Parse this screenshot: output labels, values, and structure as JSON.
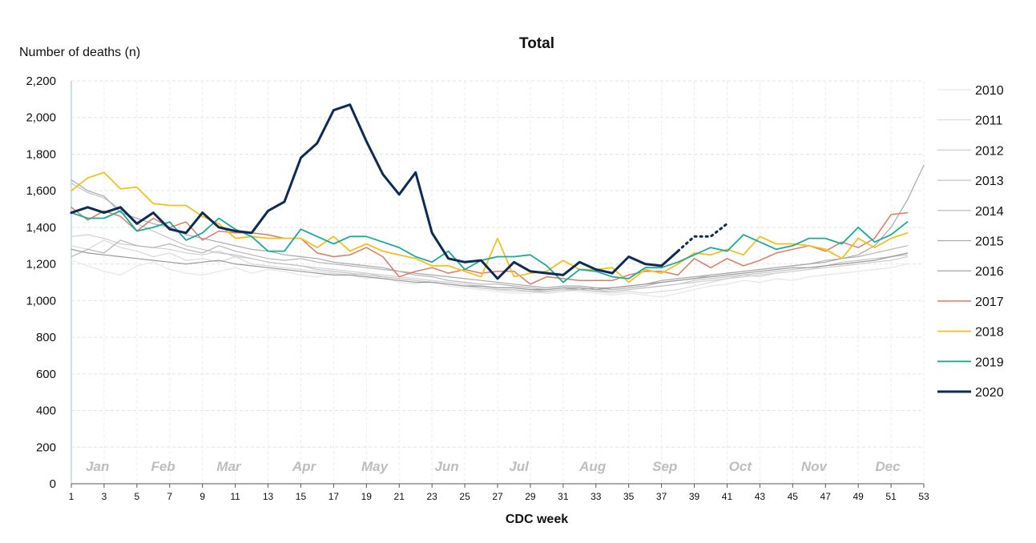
{
  "chart_data": {
    "type": "line",
    "title": "Total",
    "ylabel": "Number of deaths (n)",
    "xlabel": "CDC week",
    "ylim": [
      0,
      2200
    ],
    "yticks": [
      0,
      200,
      400,
      600,
      800,
      1000,
      1200,
      1400,
      1600,
      1800,
      2000,
      2200
    ],
    "ytick_labels": [
      "0",
      "200",
      "400",
      "600",
      "800",
      "1,000",
      "1,200",
      "1,400",
      "1,600",
      "1,800",
      "2,000",
      "2,200"
    ],
    "xlim": [
      1,
      53
    ],
    "xticks": [
      1,
      3,
      5,
      7,
      9,
      11,
      13,
      15,
      17,
      19,
      21,
      23,
      25,
      27,
      29,
      31,
      33,
      35,
      37,
      39,
      41,
      43,
      45,
      47,
      49,
      51,
      53
    ],
    "months": [
      {
        "label": "Jan",
        "week": 2.6
      },
      {
        "label": "Feb",
        "week": 6.6
      },
      {
        "label": "Mar",
        "week": 10.6
      },
      {
        "label": "Apr",
        "week": 15.2
      },
      {
        "label": "May",
        "week": 19.5
      },
      {
        "label": "Jun",
        "week": 23.9
      },
      {
        "label": "Jul",
        "week": 28.3
      },
      {
        "label": "Aug",
        "week": 32.8
      },
      {
        "label": "Sep",
        "week": 37.2
      },
      {
        "label": "Oct",
        "week": 41.8
      },
      {
        "label": "Nov",
        "week": 46.3
      },
      {
        "label": "Dec",
        "week": 50.8
      }
    ],
    "grid": true,
    "legend_position": "right",
    "series": [
      {
        "name": "2010",
        "color": "#e6e6e6",
        "width": 1.2,
        "x_start": 1,
        "values": [
          1220,
          1190,
          1160,
          1140,
          1190,
          1210,
          1170,
          1150,
          1140,
          1160,
          1180,
          1150,
          1170,
          1160,
          1140,
          1130,
          1150,
          1140,
          1120,
          1130,
          1100,
          1090,
          1110,
          1080,
          1070,
          1060,
          1050,
          1040,
          1040,
          1050,
          1060,
          1050,
          1040,
          1030,
          1040,
          1030,
          1020,
          1040,
          1060,
          1080,
          1090,
          1110,
          1100,
          1120,
          1110,
          1130,
          1140,
          1150,
          1160,
          1170,
          1180,
          1200
        ]
      },
      {
        "name": "2011",
        "color": "#d9d9d9",
        "width": 1.2,
        "x_start": 1,
        "values": [
          1300,
          1280,
          1330,
          1290,
          1270,
          1240,
          1260,
          1220,
          1230,
          1210,
          1240,
          1200,
          1190,
          1180,
          1170,
          1160,
          1150,
          1140,
          1150,
          1130,
          1120,
          1110,
          1100,
          1090,
          1080,
          1070,
          1060,
          1050,
          1050,
          1040,
          1050,
          1060,
          1050,
          1040,
          1050,
          1040,
          1050,
          1060,
          1080,
          1100,
          1120,
          1140,
          1130,
          1150,
          1160,
          1170,
          1190,
          1200,
          1210,
          1220,
          1240,
          1260
        ]
      },
      {
        "name": "2012",
        "color": "#cfcfcf",
        "width": 1.2,
        "x_start": 1,
        "values": [
          1350,
          1360,
          1340,
          1310,
          1300,
          1290,
          1280,
          1260,
          1250,
          1270,
          1240,
          1230,
          1210,
          1200,
          1190,
          1180,
          1170,
          1160,
          1150,
          1140,
          1130,
          1120,
          1110,
          1100,
          1090,
          1080,
          1070,
          1070,
          1060,
          1050,
          1060,
          1070,
          1060,
          1050,
          1060,
          1070,
          1080,
          1090,
          1100,
          1110,
          1120,
          1130,
          1140,
          1150,
          1160,
          1170,
          1180,
          1190,
          1200,
          1210,
          1220,
          1240
        ]
      },
      {
        "name": "2013",
        "color": "#c4c4c4",
        "width": 1.2,
        "x_start": 1,
        "values": [
          1640,
          1590,
          1560,
          1500,
          1420,
          1380,
          1340,
          1300,
          1280,
          1260,
          1250,
          1230,
          1210,
          1200,
          1190,
          1170,
          1160,
          1150,
          1140,
          1130,
          1120,
          1110,
          1100,
          1090,
          1080,
          1070,
          1060,
          1060,
          1050,
          1050,
          1060,
          1060,
          1050,
          1050,
          1060,
          1070,
          1080,
          1090,
          1110,
          1120,
          1130,
          1140,
          1150,
          1160,
          1170,
          1180,
          1190,
          1210,
          1220,
          1230,
          1240,
          1250
        ]
      },
      {
        "name": "2014",
        "color": "#b5b5b5",
        "width": 1.2,
        "x_start": 1,
        "values": [
          1240,
          1280,
          1260,
          1330,
          1300,
          1290,
          1310,
          1280,
          1260,
          1300,
          1270,
          1250,
          1230,
          1220,
          1230,
          1210,
          1200,
          1190,
          1180,
          1170,
          1160,
          1140,
          1130,
          1110,
          1100,
          1090,
          1090,
          1080,
          1070,
          1060,
          1070,
          1060,
          1070,
          1060,
          1070,
          1080,
          1100,
          1110,
          1120,
          1140,
          1150,
          1160,
          1170,
          1180,
          1190,
          1200,
          1220,
          1230,
          1240,
          1260,
          1280,
          1300
        ]
      },
      {
        "name": "2015",
        "color": "#a8a8a8",
        "width": 1.2,
        "x_start": 1,
        "values": [
          1660,
          1600,
          1570,
          1480,
          1450,
          1420,
          1400,
          1360,
          1340,
          1320,
          1300,
          1280,
          1270,
          1250,
          1240,
          1230,
          1210,
          1200,
          1190,
          1180,
          1160,
          1150,
          1140,
          1130,
          1120,
          1110,
          1100,
          1090,
          1080,
          1070,
          1080,
          1080,
          1070,
          1070,
          1080,
          1090,
          1110,
          1120,
          1130,
          1140,
          1150,
          1160,
          1170,
          1180,
          1190,
          1200,
          1210,
          1230,
          1250,
          1300,
          1400,
          1550,
          1740
        ]
      },
      {
        "name": "2016",
        "color": "#9a9a9a",
        "width": 1.2,
        "x_start": 1,
        "values": [
          1280,
          1260,
          1250,
          1240,
          1230,
          1220,
          1210,
          1200,
          1210,
          1220,
          1200,
          1190,
          1180,
          1170,
          1160,
          1150,
          1140,
          1140,
          1130,
          1120,
          1110,
          1100,
          1100,
          1090,
          1080,
          1080,
          1070,
          1070,
          1060,
          1060,
          1070,
          1070,
          1060,
          1070,
          1080,
          1090,
          1100,
          1110,
          1120,
          1130,
          1140,
          1150,
          1160,
          1170,
          1180,
          1180,
          1190,
          1200,
          1210,
          1220,
          1240,
          1260
        ]
      },
      {
        "name": "2017",
        "color": "#e07a5f",
        "width": 1.5,
        "x_start": 1,
        "values": [
          1510,
          1440,
          1490,
          1460,
          1380,
          1450,
          1400,
          1430,
          1330,
          1380,
          1370,
          1370,
          1360,
          1340,
          1340,
          1260,
          1240,
          1250,
          1290,
          1240,
          1130,
          1160,
          1180,
          1150,
          1170,
          1150,
          1160,
          1160,
          1090,
          1130,
          1120,
          1110,
          1110,
          1110,
          1140,
          1160,
          1160,
          1140,
          1230,
          1180,
          1230,
          1190,
          1220,
          1260,
          1280,
          1300,
          1270,
          1320,
          1290,
          1340,
          1470,
          1480
        ]
      },
      {
        "name": "2018",
        "color": "#f5c01b",
        "width": 1.8,
        "x_start": 1,
        "values": [
          1600,
          1670,
          1700,
          1610,
          1620,
          1530,
          1520,
          1520,
          1460,
          1420,
          1340,
          1350,
          1340,
          1340,
          1340,
          1290,
          1350,
          1270,
          1310,
          1270,
          1250,
          1230,
          1190,
          1190,
          1160,
          1130,
          1340,
          1130,
          1150,
          1160,
          1220,
          1170,
          1170,
          1180,
          1100,
          1170,
          1150,
          1200,
          1260,
          1250,
          1280,
          1250,
          1350,
          1310,
          1310,
          1300,
          1280,
          1230,
          1340,
          1290,
          1340,
          1370
        ]
      },
      {
        "name": "2019",
        "color": "#1aaa99",
        "width": 1.8,
        "x_start": 1,
        "values": [
          1480,
          1450,
          1450,
          1490,
          1380,
          1400,
          1430,
          1330,
          1370,
          1450,
          1390,
          1350,
          1270,
          1270,
          1390,
          1350,
          1310,
          1350,
          1350,
          1320,
          1290,
          1240,
          1210,
          1270,
          1170,
          1220,
          1240,
          1240,
          1250,
          1190,
          1100,
          1170,
          1160,
          1130,
          1120,
          1180,
          1180,
          1210,
          1250,
          1290,
          1270,
          1360,
          1320,
          1280,
          1300,
          1340,
          1340,
          1310,
          1400,
          1320,
          1360,
          1430
        ]
      },
      {
        "name": "2020",
        "color": "#0d2b55",
        "width": 3,
        "x_start": 1,
        "values": [
          1480,
          1510,
          1480,
          1510,
          1420,
          1480,
          1390,
          1370,
          1480,
          1400,
          1380,
          1370,
          1490,
          1540,
          1780,
          1860,
          2040,
          2070,
          1870,
          1690,
          1580,
          1700,
          1370,
          1230,
          1210,
          1220,
          1120,
          1210,
          1160,
          1150,
          1140,
          1210,
          1170,
          1150,
          1240,
          1200,
          1190,
          1270
        ],
        "provisional": {
          "x_start": 38,
          "values": [
            1270,
            1350,
            1350,
            1420
          ]
        }
      }
    ]
  }
}
